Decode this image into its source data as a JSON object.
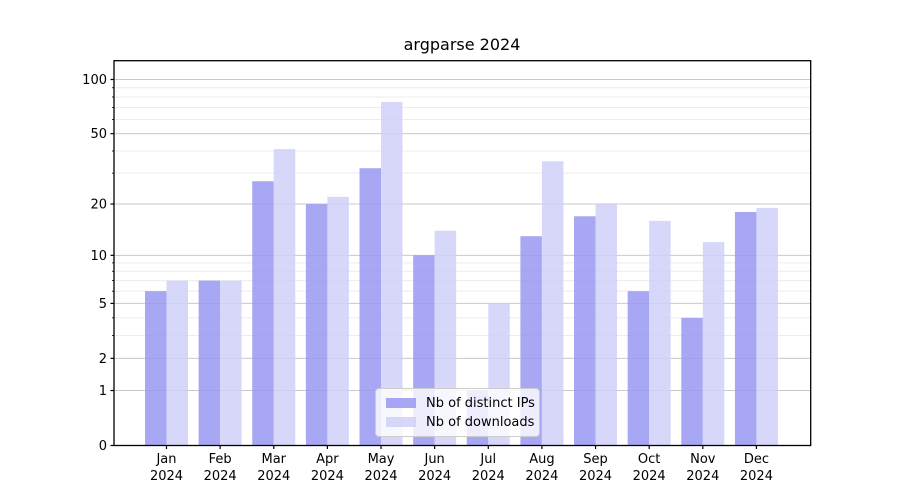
{
  "title": "argparse 2024",
  "y_axis": {
    "tick_labels": [
      "100",
      "50",
      "20",
      "10",
      "5",
      "2",
      "1",
      "0"
    ]
  },
  "x_axis": {
    "months": [
      "Jan",
      "Feb",
      "Mar",
      "Apr",
      "May",
      "Jun",
      "Jul",
      "Aug",
      "Sep",
      "Oct",
      "Nov",
      "Dec"
    ],
    "year": "2024"
  },
  "legend": {
    "items": [
      {
        "label": "Nb of distinct IPs",
        "color": "#9898f2"
      },
      {
        "label": "Nb of downloads",
        "color": "#d0d0f8"
      }
    ]
  },
  "colors": {
    "bar_ips": "#9898f2",
    "bar_downloads": "#d0d0f8",
    "bar_alpha": "0.85",
    "major_grid": "#c9c9c9",
    "minor_grid": "#ececec",
    "axis": "#000000",
    "text": "#000000",
    "legend_border": "#cccccc"
  },
  "chart_data": {
    "type": "bar",
    "title": "argparse 2024",
    "categories": [
      "Jan 2024",
      "Feb 2024",
      "Mar 2024",
      "Apr 2024",
      "May 2024",
      "Jun 2024",
      "Jul 2024",
      "Aug 2024",
      "Sep 2024",
      "Oct 2024",
      "Nov 2024",
      "Dec 2024"
    ],
    "series": [
      {
        "name": "Nb of distinct IPs",
        "color": "#9898f2",
        "values": [
          6,
          7,
          27,
          20,
          32,
          10,
          1,
          13,
          17,
          6,
          4,
          18
        ]
      },
      {
        "name": "Nb of downloads",
        "color": "#d0d0f8",
        "values": [
          7,
          7,
          41,
          22,
          75,
          14,
          5,
          35,
          20,
          16,
          12,
          19
        ]
      }
    ],
    "xlabel": "",
    "ylabel": "",
    "yscale": "log1p",
    "ylim": [
      0,
      127
    ],
    "yticks": [
      0,
      1,
      2,
      5,
      10,
      20,
      50,
      100
    ],
    "yticks_minor": [
      3,
      4,
      6,
      7,
      8,
      9,
      30,
      40,
      60,
      70,
      80,
      90
    ],
    "grid": true,
    "legend_position": "lower center"
  }
}
